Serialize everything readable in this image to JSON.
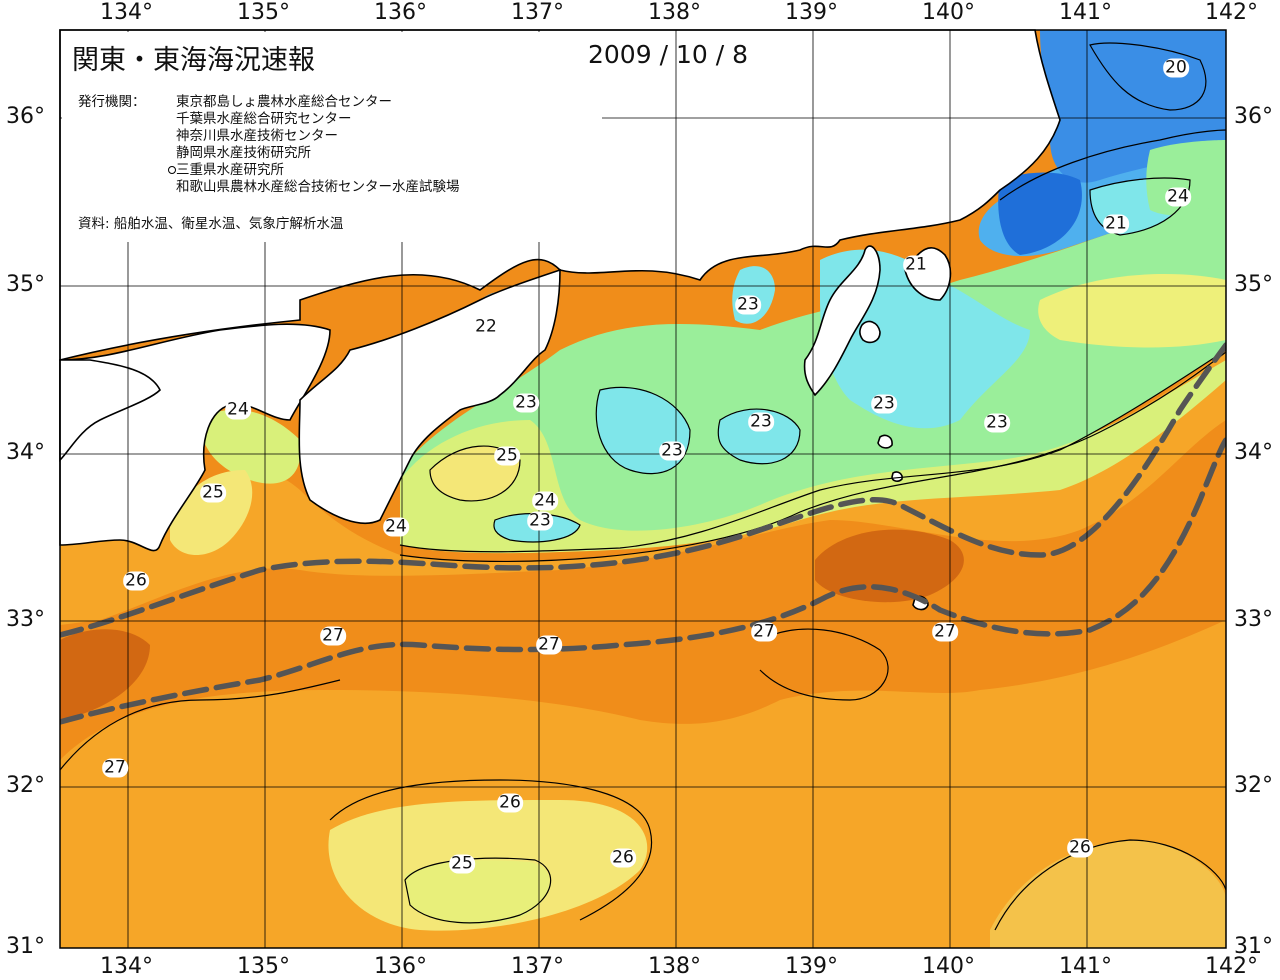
{
  "title": "関東・東海海況速報",
  "date": "2009 / 10 / 8",
  "issuer_label": "発行機関：",
  "issuers": [
    "東京都島しょ農林水産総合センター",
    "千葉県水産総合研究センター",
    "神奈川県水産技術センター",
    "静岡県水産技術研究所",
    "三重県水産研究所",
    "和歌山県農林水産総合技術センター水産試験場"
  ],
  "source": "資料: 船舶水温、衛星水温、気象庁解析水温",
  "longitude_labels": [
    "134°",
    "135°",
    "136°",
    "137°",
    "138°",
    "139°",
    "140°",
    "141°",
    "142°"
  ],
  "latitude_labels": [
    "36°",
    "35°",
    "34°",
    "33°",
    "32°",
    "31°"
  ],
  "contour_labels": [
    "20",
    "24",
    "21",
    "21",
    "22",
    "23",
    "24",
    "23",
    "23",
    "23",
    "23",
    "23",
    "25",
    "24",
    "23",
    "25",
    "24",
    "26",
    "27",
    "27",
    "27",
    "27",
    "27",
    "26",
    "26",
    "25",
    "26"
  ],
  "colors": {
    "t19": "#1f6fd9",
    "t20": "#3a8ee6",
    "t21": "#4fb0ee",
    "t22": "#7fe6ea",
    "t23": "#9aee9a",
    "t24": "#d9f07a",
    "t25": "#f4e777",
    "t26": "#f6a628",
    "t27": "#f08d1a",
    "t28": "#d26812",
    "land": "#ffffff",
    "kuroshio_axis": "#555555"
  }
}
